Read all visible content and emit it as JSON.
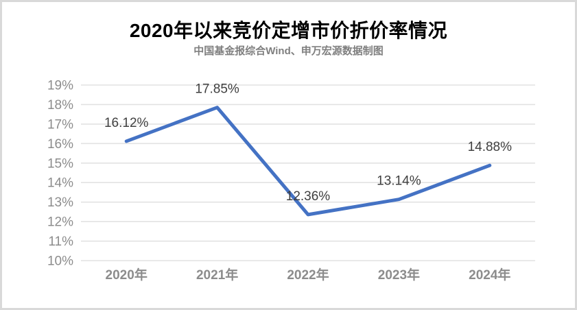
{
  "chart_data": {
    "type": "line",
    "title": "2020年以来竞价定增市价折价率情况",
    "subtitle": "中国基金报综合Wind、申万宏源数据制图",
    "categories": [
      "2020年",
      "2021年",
      "2022年",
      "2023年",
      "2024年"
    ],
    "values": [
      16.12,
      17.85,
      12.36,
      13.14,
      14.88
    ],
    "data_labels": [
      "16.12%",
      "17.85%",
      "12.36%",
      "13.14%",
      "14.88%"
    ],
    "y_axis": {
      "min": 10,
      "max": 19,
      "tick_interval": 1,
      "tick_labels": [
        "10%",
        "11%",
        "12%",
        "13%",
        "14%",
        "15%",
        "16%",
        "17%",
        "18%",
        "19%"
      ]
    },
    "grid": true,
    "legend": "none",
    "colors": {
      "line": "#4472C4",
      "gridline": "#e2e2e2",
      "axis_label": "#8c8c8c",
      "data_label": "#3f3f3f",
      "title": "#000000",
      "subtitle": "#7f7f7f",
      "frame_border": "#d9d9d9",
      "background": "#ffffff"
    }
  }
}
